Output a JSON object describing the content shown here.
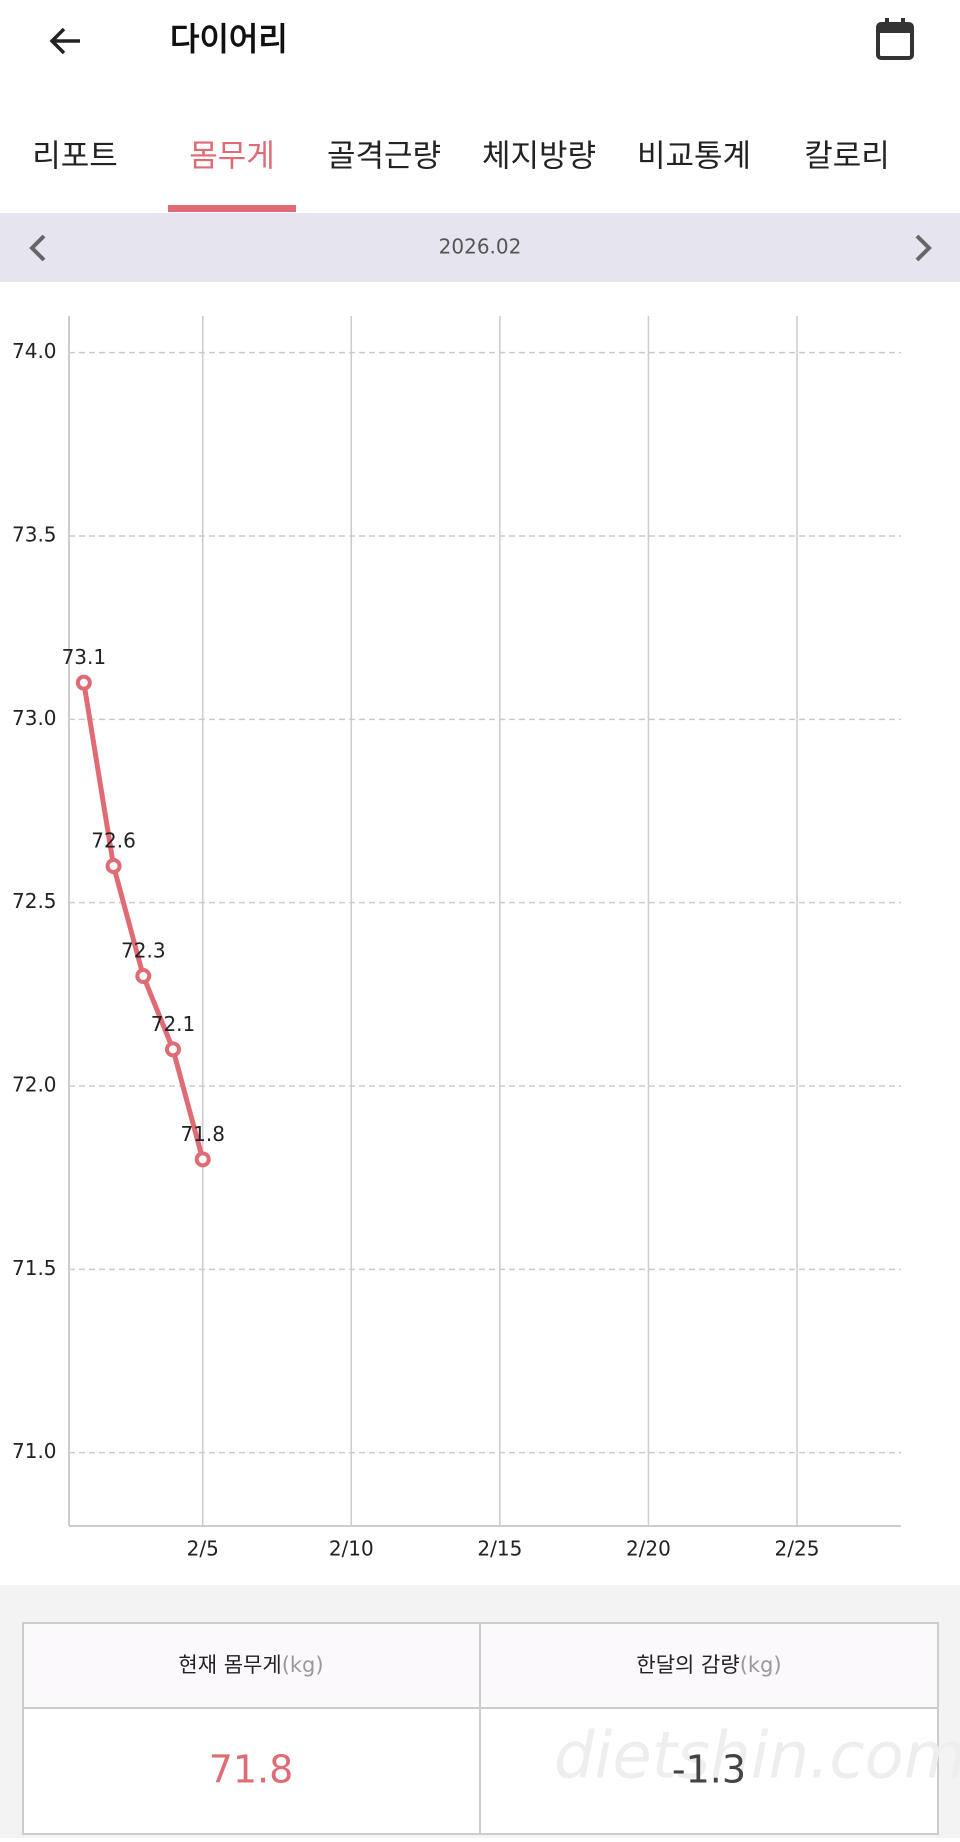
{
  "app_bar": {
    "title": "다이어리"
  },
  "tabs": [
    "리포트",
    "몸무게",
    "골격근량",
    "체지방량",
    "비교통계",
    "칼로리"
  ],
  "active_tab": 1,
  "month": "2026.02",
  "chart_data": {
    "type": "line",
    "x": [
      1,
      2,
      3,
      4,
      5
    ],
    "series": [
      {
        "name": "몸무게",
        "color": "#e06b74",
        "values": [
          73.1,
          72.6,
          72.3,
          72.1,
          71.8
        ]
      }
    ],
    "xlim": [
      0.5,
      28.5
    ],
    "xticks": [
      {
        "value": 5,
        "label": "2/5"
      },
      {
        "value": 10,
        "label": "2/10"
      },
      {
        "value": 15,
        "label": "2/15"
      },
      {
        "value": 20,
        "label": "2/20"
      },
      {
        "value": 25,
        "label": "2/25"
      }
    ],
    "ylim": [
      70.8,
      74.1
    ],
    "yticks": [
      {
        "value": 71,
        "label": "71.0"
      },
      {
        "value": 71.5,
        "label": "71.5"
      },
      {
        "value": 72,
        "label": "72.0"
      },
      {
        "value": 72.5,
        "label": "72.5"
      },
      {
        "value": 73,
        "label": "73.0"
      },
      {
        "value": 73.5,
        "label": "73.5"
      },
      {
        "value": 74,
        "label": "74.0"
      }
    ],
    "grid": true
  },
  "summary": {
    "headers": [
      {
        "label": "현재 몸무게",
        "unit": "(kg)"
      },
      {
        "label": "한달의 감량",
        "unit": "(kg)"
      }
    ],
    "values": [
      "71.8",
      "-1.3"
    ]
  },
  "watermark": "dietshin.com"
}
